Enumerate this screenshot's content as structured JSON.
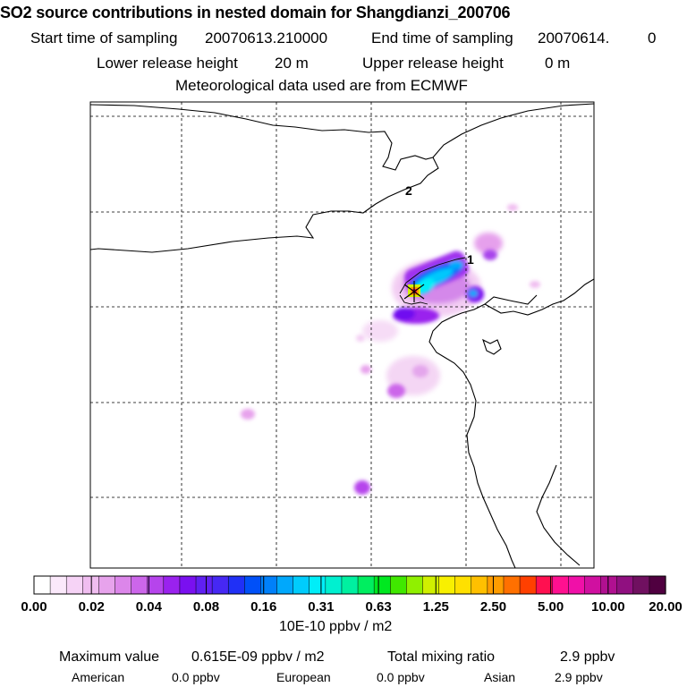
{
  "header": {
    "title": "SO2 source contributions in nested domain for Shangdianzi_200706",
    "start_label": "Start time of sampling",
    "start_value": "20070613.210000",
    "end_label": "End time of sampling",
    "end_value": "20070614.",
    "end_suffix": "0",
    "lower_label": "Lower release height",
    "lower_value": "20 m",
    "upper_label": "Upper release height",
    "upper_value": "0 m",
    "met_line": "Meteorological data used are from ECMWF"
  },
  "map": {
    "contour_labels": [
      "2",
      "1"
    ]
  },
  "colorbar": {
    "tick_labels": [
      "0.00",
      "0.02",
      "0.04",
      "0.08",
      "0.16",
      "0.31",
      "0.63",
      "1.25",
      "2.50",
      "5.00",
      "10.00",
      "20.00"
    ],
    "colors": [
      "#ffffff",
      "#fbe9fb",
      "#f6d3f6",
      "#f0bdf0",
      "#e7a3ec",
      "#dc86ea",
      "#cc66ea",
      "#b644ec",
      "#9a22ee",
      "#7a10f0",
      "#6020f2",
      "#4628f4",
      "#2030f6",
      "#0050f8",
      "#0080fa",
      "#00a8fc",
      "#00ccfc",
      "#00eef8",
      "#00f0d0",
      "#00f0a0",
      "#00ee60",
      "#00e820",
      "#40e800",
      "#90f000",
      "#d0f000",
      "#f8f000",
      "#ffe000",
      "#ffc000",
      "#ff9c00",
      "#ff7000",
      "#ff4000",
      "#ff1050",
      "#ff1090",
      "#f010a8",
      "#d010a0",
      "#b01090",
      "#901080",
      "#701060",
      "#500040"
    ],
    "units": "10E-10 ppbv / m2"
  },
  "footer": {
    "max_label": "Maximum value",
    "max_value": "0.615E-09 ppbv / m2",
    "total_label": "Total mixing ratio",
    "total_value": "2.9 ppbv",
    "american_label": "American",
    "american_value": "0.0 ppbv",
    "european_label": "European",
    "european_value": "0.0 ppbv",
    "asian_label": "Asian",
    "asian_value": "2.9 ppbv"
  },
  "chart_data": {
    "type": "heatmap",
    "title": "SO2 source contributions in nested domain for Shangdianzi_200706",
    "units": "10E-10 ppbv / m2",
    "color_scale_levels": [
      0.0,
      0.02,
      0.04,
      0.08,
      0.16,
      0.31,
      0.63,
      1.25,
      2.5,
      5.0,
      10.0,
      20.0
    ],
    "grid": true,
    "maximum_value": "0.615E-09 ppbv / m2",
    "total_mixing_ratio": "2.9 ppbv",
    "contributions": [
      {
        "name": "American",
        "value": "0.0 ppbv"
      },
      {
        "name": "European",
        "value": "0.0 ppbv"
      },
      {
        "name": "Asian",
        "value": "2.9 ppbv"
      }
    ]
  }
}
